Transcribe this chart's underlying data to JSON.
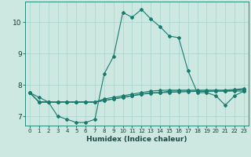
{
  "title": "",
  "xlabel": "Humidex (Indice chaleur)",
  "ylabel": "",
  "bg_color": "#cce8e0",
  "line_color": "#1a7a6e",
  "grid_color": "#a8d4cc",
  "xlim": [
    -0.5,
    23.5
  ],
  "ylim": [
    6.7,
    10.65
  ],
  "xticks": [
    0,
    1,
    2,
    3,
    4,
    5,
    6,
    7,
    8,
    9,
    10,
    11,
    12,
    13,
    14,
    15,
    16,
    17,
    18,
    19,
    20,
    21,
    22,
    23
  ],
  "yticks": [
    7,
    8,
    9,
    10
  ],
  "line1_x": [
    0,
    1,
    2,
    3,
    4,
    5,
    6,
    7,
    8,
    9,
    10,
    11,
    12,
    13,
    14,
    15,
    16,
    17,
    18,
    19,
    20,
    21,
    22,
    23
  ],
  "line1_y": [
    7.75,
    7.6,
    7.45,
    7.0,
    6.9,
    6.8,
    6.8,
    6.9,
    8.35,
    8.9,
    10.3,
    10.15,
    10.4,
    10.1,
    9.85,
    9.55,
    9.5,
    8.45,
    7.75,
    7.75,
    7.65,
    7.35,
    7.65,
    7.8
  ],
  "line2_x": [
    0,
    1,
    2,
    3,
    4,
    5,
    6,
    7,
    8,
    9,
    10,
    11,
    12,
    13,
    14,
    15,
    16,
    17,
    18,
    19,
    20,
    21,
    22,
    23
  ],
  "line2_y": [
    7.75,
    7.45,
    7.45,
    7.45,
    7.45,
    7.45,
    7.45,
    7.45,
    7.5,
    7.55,
    7.6,
    7.65,
    7.7,
    7.75,
    7.75,
    7.8,
    7.8,
    7.8,
    7.8,
    7.8,
    7.8,
    7.8,
    7.8,
    7.8
  ],
  "line3_x": [
    0,
    1,
    2,
    3,
    4,
    5,
    6,
    7,
    8,
    9,
    10,
    11,
    12,
    13,
    14,
    15,
    16,
    17,
    18,
    19,
    20,
    21,
    22,
    23
  ],
  "line3_y": [
    7.75,
    7.45,
    7.45,
    7.45,
    7.45,
    7.45,
    7.45,
    7.45,
    7.55,
    7.6,
    7.65,
    7.7,
    7.75,
    7.8,
    7.82,
    7.83,
    7.83,
    7.83,
    7.83,
    7.83,
    7.83,
    7.83,
    7.85,
    7.88
  ],
  "line4_x": [
    0,
    1,
    2,
    3,
    4,
    5,
    6,
    7,
    8,
    9,
    10,
    11,
    12,
    13,
    14,
    15,
    16,
    17,
    18,
    19,
    20,
    21,
    22,
    23
  ],
  "line4_y": [
    7.75,
    7.45,
    7.45,
    7.45,
    7.45,
    7.45,
    7.45,
    7.45,
    7.5,
    7.55,
    7.6,
    7.65,
    7.7,
    7.73,
    7.75,
    7.76,
    7.77,
    7.78,
    7.79,
    7.79,
    7.8,
    7.8,
    7.82,
    7.85
  ],
  "xlabel_fontsize": 6.5,
  "xtick_fontsize": 5.0,
  "ytick_fontsize": 6.5
}
